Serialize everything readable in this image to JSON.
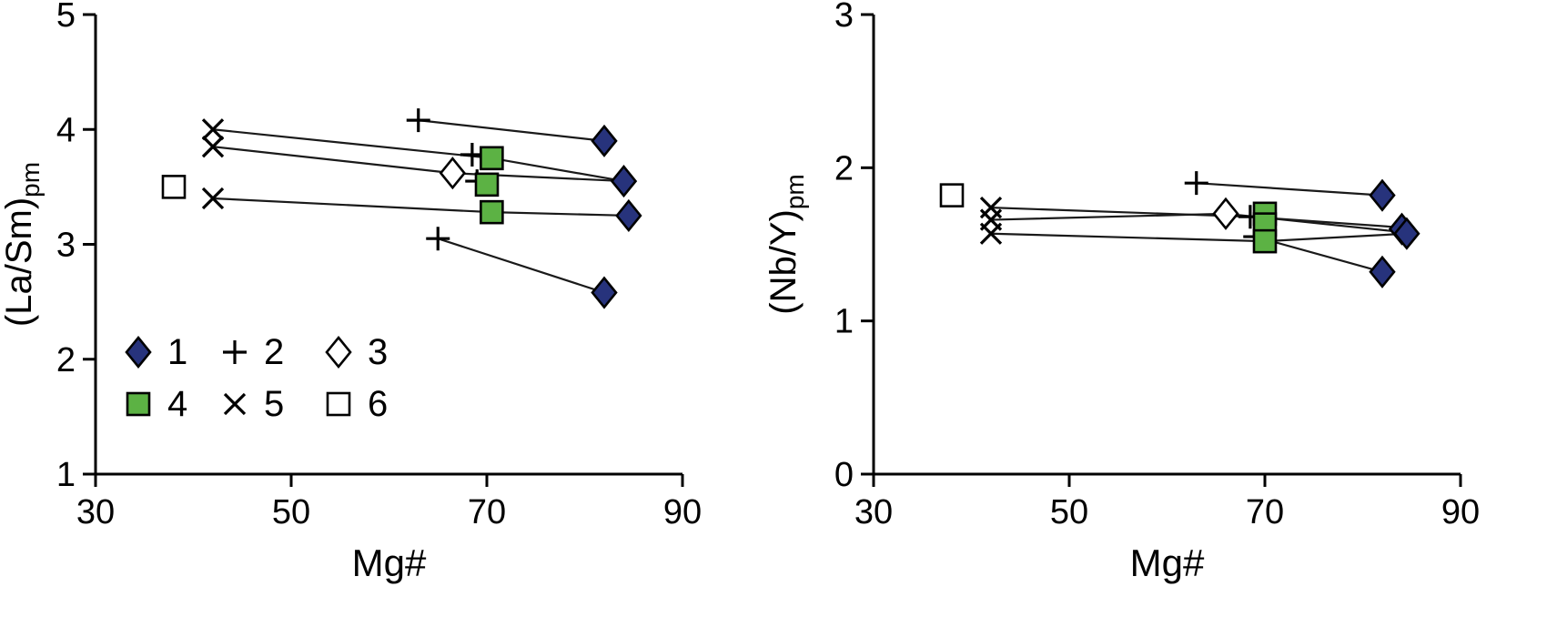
{
  "figure": {
    "background": "#ffffff"
  },
  "colors": {
    "diamond_fill": "#27337c",
    "square_fill": "#5cb244",
    "axis": "#000000",
    "line": "#1a1a1a"
  },
  "legend": {
    "items": [
      {
        "label": "1",
        "symbol": "diamond-filled"
      },
      {
        "label": "2",
        "symbol": "plus"
      },
      {
        "label": "3",
        "symbol": "diamond-open"
      },
      {
        "label": "4",
        "symbol": "square-filled"
      },
      {
        "label": "5",
        "symbol": "cross"
      },
      {
        "label": "6",
        "symbol": "square-open"
      }
    ]
  },
  "chart_data": [
    {
      "type": "scatter",
      "xlabel": "Mg#",
      "ylabel_main": "(La/Sm)",
      "ylabel_sub": "pm",
      "xlim": [
        30,
        90
      ],
      "ylim": [
        1,
        5
      ],
      "xticks": [
        30,
        50,
        70,
        90
      ],
      "yticks": [
        1,
        2,
        3,
        4,
        5
      ],
      "show_legend": true,
      "series": [
        {
          "name": "1",
          "symbol": "diamond-filled",
          "points": [
            [
              82,
              3.9
            ],
            [
              84,
              3.55
            ],
            [
              84.5,
              3.25
            ],
            [
              82,
              2.58
            ]
          ]
        },
        {
          "name": "2",
          "symbol": "plus",
          "points": [
            [
              63,
              4.08
            ],
            [
              68.5,
              3.78
            ],
            [
              69,
              3.55
            ],
            [
              65,
              3.05
            ]
          ]
        },
        {
          "name": "3",
          "symbol": "diamond-open",
          "points": [
            [
              66.5,
              3.62
            ]
          ]
        },
        {
          "name": "4",
          "symbol": "square-filled",
          "points": [
            [
              70.5,
              3.75
            ],
            [
              70,
              3.52
            ],
            [
              70.5,
              3.28
            ]
          ]
        },
        {
          "name": "5",
          "symbol": "cross",
          "points": [
            [
              42,
              4.0
            ],
            [
              42,
              3.85
            ],
            [
              42,
              3.4
            ]
          ]
        },
        {
          "name": "6",
          "symbol": "square-open",
          "points": [
            [
              38,
              3.5
            ]
          ]
        }
      ],
      "tie_lines": [
        [
          [
            63,
            4.08
          ],
          [
            82,
            3.9
          ]
        ],
        [
          [
            42,
            4.0
          ],
          [
            70.5,
            3.75
          ],
          [
            84,
            3.55
          ]
        ],
        [
          [
            42,
            3.85
          ],
          [
            66.5,
            3.62
          ],
          [
            84,
            3.55
          ]
        ],
        [
          [
            42,
            3.4
          ],
          [
            70.5,
            3.28
          ],
          [
            84.5,
            3.25
          ]
        ],
        [
          [
            65,
            3.05
          ],
          [
            82,
            2.58
          ]
        ]
      ]
    },
    {
      "type": "scatter",
      "xlabel": "Mg#",
      "ylabel_main": "(Nb/Y)",
      "ylabel_sub": "pm",
      "xlim": [
        30,
        90
      ],
      "ylim": [
        0,
        3
      ],
      "xticks": [
        30,
        50,
        70,
        90
      ],
      "yticks": [
        0,
        1,
        2,
        3
      ],
      "show_legend": false,
      "series": [
        {
          "name": "1",
          "symbol": "diamond-filled",
          "points": [
            [
              82,
              1.82
            ],
            [
              84,
              1.6
            ],
            [
              84.5,
              1.57
            ],
            [
              82,
              1.32
            ]
          ]
        },
        {
          "name": "2",
          "symbol": "plus",
          "points": [
            [
              63,
              1.9
            ],
            [
              68.5,
              1.68
            ],
            [
              69,
              1.55
            ]
          ]
        },
        {
          "name": "3",
          "symbol": "diamond-open",
          "points": [
            [
              66,
              1.7
            ]
          ]
        },
        {
          "name": "4",
          "symbol": "square-filled",
          "points": [
            [
              70,
              1.7
            ],
            [
              70,
              1.63
            ],
            [
              70,
              1.52
            ]
          ]
        },
        {
          "name": "5",
          "symbol": "cross",
          "points": [
            [
              42,
              1.74
            ],
            [
              42,
              1.66
            ],
            [
              42,
              1.57
            ]
          ]
        },
        {
          "name": "6",
          "symbol": "square-open",
          "points": [
            [
              38,
              1.82
            ]
          ]
        }
      ],
      "tie_lines": [
        [
          [
            63,
            1.9
          ],
          [
            82,
            1.82
          ]
        ],
        [
          [
            42,
            1.74
          ],
          [
            68.5,
            1.68
          ],
          [
            84,
            1.61
          ]
        ],
        [
          [
            42,
            1.66
          ],
          [
            66,
            1.7
          ],
          [
            84,
            1.58
          ]
        ],
        [
          [
            42,
            1.57
          ],
          [
            70,
            1.52
          ],
          [
            84.5,
            1.57
          ]
        ],
        [
          [
            69,
            1.55
          ],
          [
            82,
            1.32
          ]
        ]
      ]
    }
  ]
}
